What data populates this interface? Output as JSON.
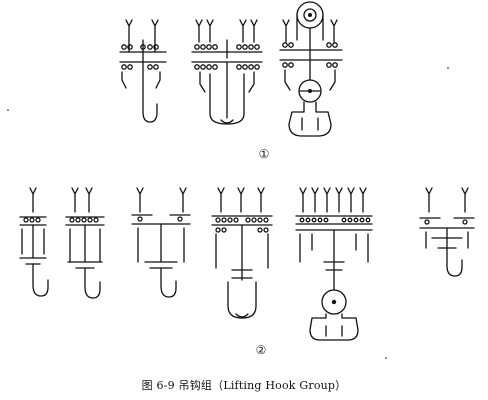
{
  "figure": {
    "group_labels": [
      "①",
      "②"
    ],
    "caption": "图 6-9   吊钩组（Lifting Hook Group）",
    "ink_color": "#111111",
    "background": "#ffffff"
  },
  "hooks": [
    {
      "name": "row1-hook-2rope",
      "row": 1
    },
    {
      "name": "row1-hook-4rope",
      "row": 1
    },
    {
      "name": "row1-hook-ramshorn-pulley",
      "row": 1
    },
    {
      "name": "row2-hook-a",
      "row": 2
    },
    {
      "name": "row2-hook-b",
      "row": 2
    },
    {
      "name": "row2-hook-c",
      "row": 2
    },
    {
      "name": "row2-hook-d",
      "row": 2
    },
    {
      "name": "row2-hook-ramshorn",
      "row": 2
    },
    {
      "name": "row2-hook-f",
      "row": 2
    }
  ]
}
